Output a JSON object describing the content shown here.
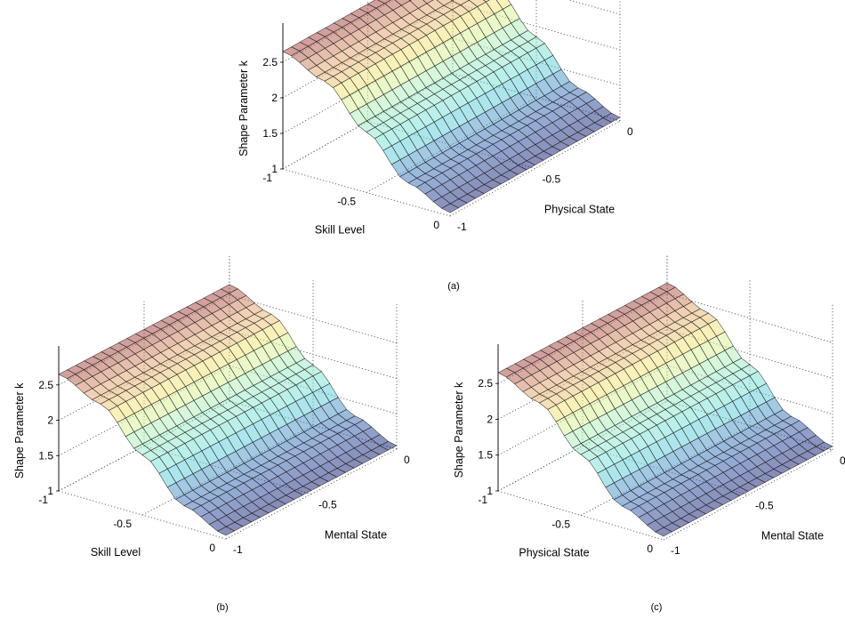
{
  "chart_data": [
    {
      "type": "surface",
      "panel": "(a)",
      "zlabel": "Shape Parameter k",
      "xlabel": "Skill Level",
      "ylabel": "Physical State",
      "x_range": [
        -1,
        0
      ],
      "y_range": [
        -1,
        0
      ],
      "zlim": [
        1,
        2.7
      ],
      "x_ticks": [
        "-1",
        "-0.5",
        "0"
      ],
      "y_ticks": [
        "-1",
        "-0.5",
        "0"
      ],
      "z_ticks": [
        "1",
        "1.5",
        "2",
        "2.5"
      ],
      "grid": true,
      "colormap": "jet",
      "surface_profile": {
        "x": [
          -1,
          -0.75,
          -0.5,
          -0.25,
          0
        ],
        "k": [
          2.65,
          2.4,
          1.85,
          1.3,
          1.05
        ]
      }
    },
    {
      "type": "surface",
      "panel": "(b)",
      "zlabel": "Shape Parameter k",
      "xlabel": "Skill Level",
      "ylabel": "Mental State",
      "x_range": [
        -1,
        0
      ],
      "y_range": [
        -1,
        0
      ],
      "zlim": [
        1,
        2.7
      ],
      "x_ticks": [
        "-1",
        "-0.5",
        "0"
      ],
      "y_ticks": [
        "-1",
        "-0.5",
        "0"
      ],
      "z_ticks": [
        "1",
        "1.5",
        "2",
        "2.5"
      ],
      "grid": true,
      "colormap": "jet",
      "surface_profile": {
        "x": [
          -1,
          -0.75,
          -0.5,
          -0.25,
          0
        ],
        "k": [
          2.65,
          2.4,
          1.85,
          1.3,
          1.05
        ]
      }
    },
    {
      "type": "surface",
      "panel": "(c)",
      "zlabel": "Shape Parameter k",
      "xlabel": "Physical State",
      "ylabel": "Mental State",
      "x_range": [
        -1,
        0
      ],
      "y_range": [
        -1,
        0
      ],
      "zlim": [
        1,
        2.7
      ],
      "x_ticks": [
        "-1",
        "-0.5",
        "0"
      ],
      "y_ticks": [
        "-1",
        "-0.5",
        "0"
      ],
      "z_ticks": [
        "1",
        "1.5",
        "2",
        "2.5"
      ],
      "grid": true,
      "colormap": "jet",
      "surface_profile": {
        "x": [
          -1,
          -0.75,
          -0.5,
          -0.25,
          0
        ],
        "k": [
          2.65,
          2.4,
          1.85,
          1.3,
          1.05
        ]
      }
    }
  ]
}
